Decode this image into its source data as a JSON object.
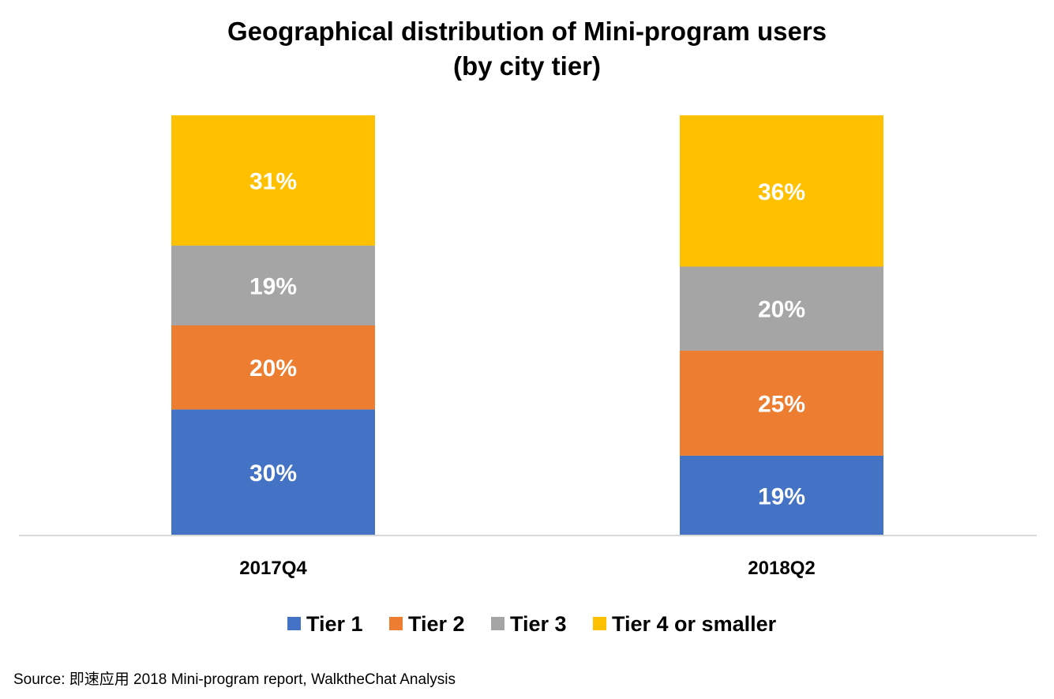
{
  "chart_data": {
    "type": "bar",
    "stacked": true,
    "title": "Geographical distribution of Mini-program users",
    "subtitle": "(by city tier)",
    "categories": [
      "2017Q4",
      "2018Q2"
    ],
    "series": [
      {
        "name": "Tier 1",
        "color": "#4472C4",
        "values": [
          30,
          19
        ],
        "labels": [
          "30%",
          "19%"
        ]
      },
      {
        "name": "Tier 2",
        "color": "#ED7D31",
        "values": [
          20,
          25
        ],
        "labels": [
          "20%",
          "25%"
        ]
      },
      {
        "name": "Tier 3",
        "color": "#A5A5A5",
        "values": [
          19,
          20
        ],
        "labels": [
          "19%",
          "20%"
        ]
      },
      {
        "name": "Tier 4 or smaller",
        "color": "#FFC000",
        "values": [
          31,
          36
        ],
        "labels": [
          "31%",
          "36%"
        ]
      }
    ],
    "unit": "%",
    "legend": "bottom",
    "grid": false
  },
  "source": "Source: 即速应用 2018 Mini-program report, WalktheChat Analysis"
}
